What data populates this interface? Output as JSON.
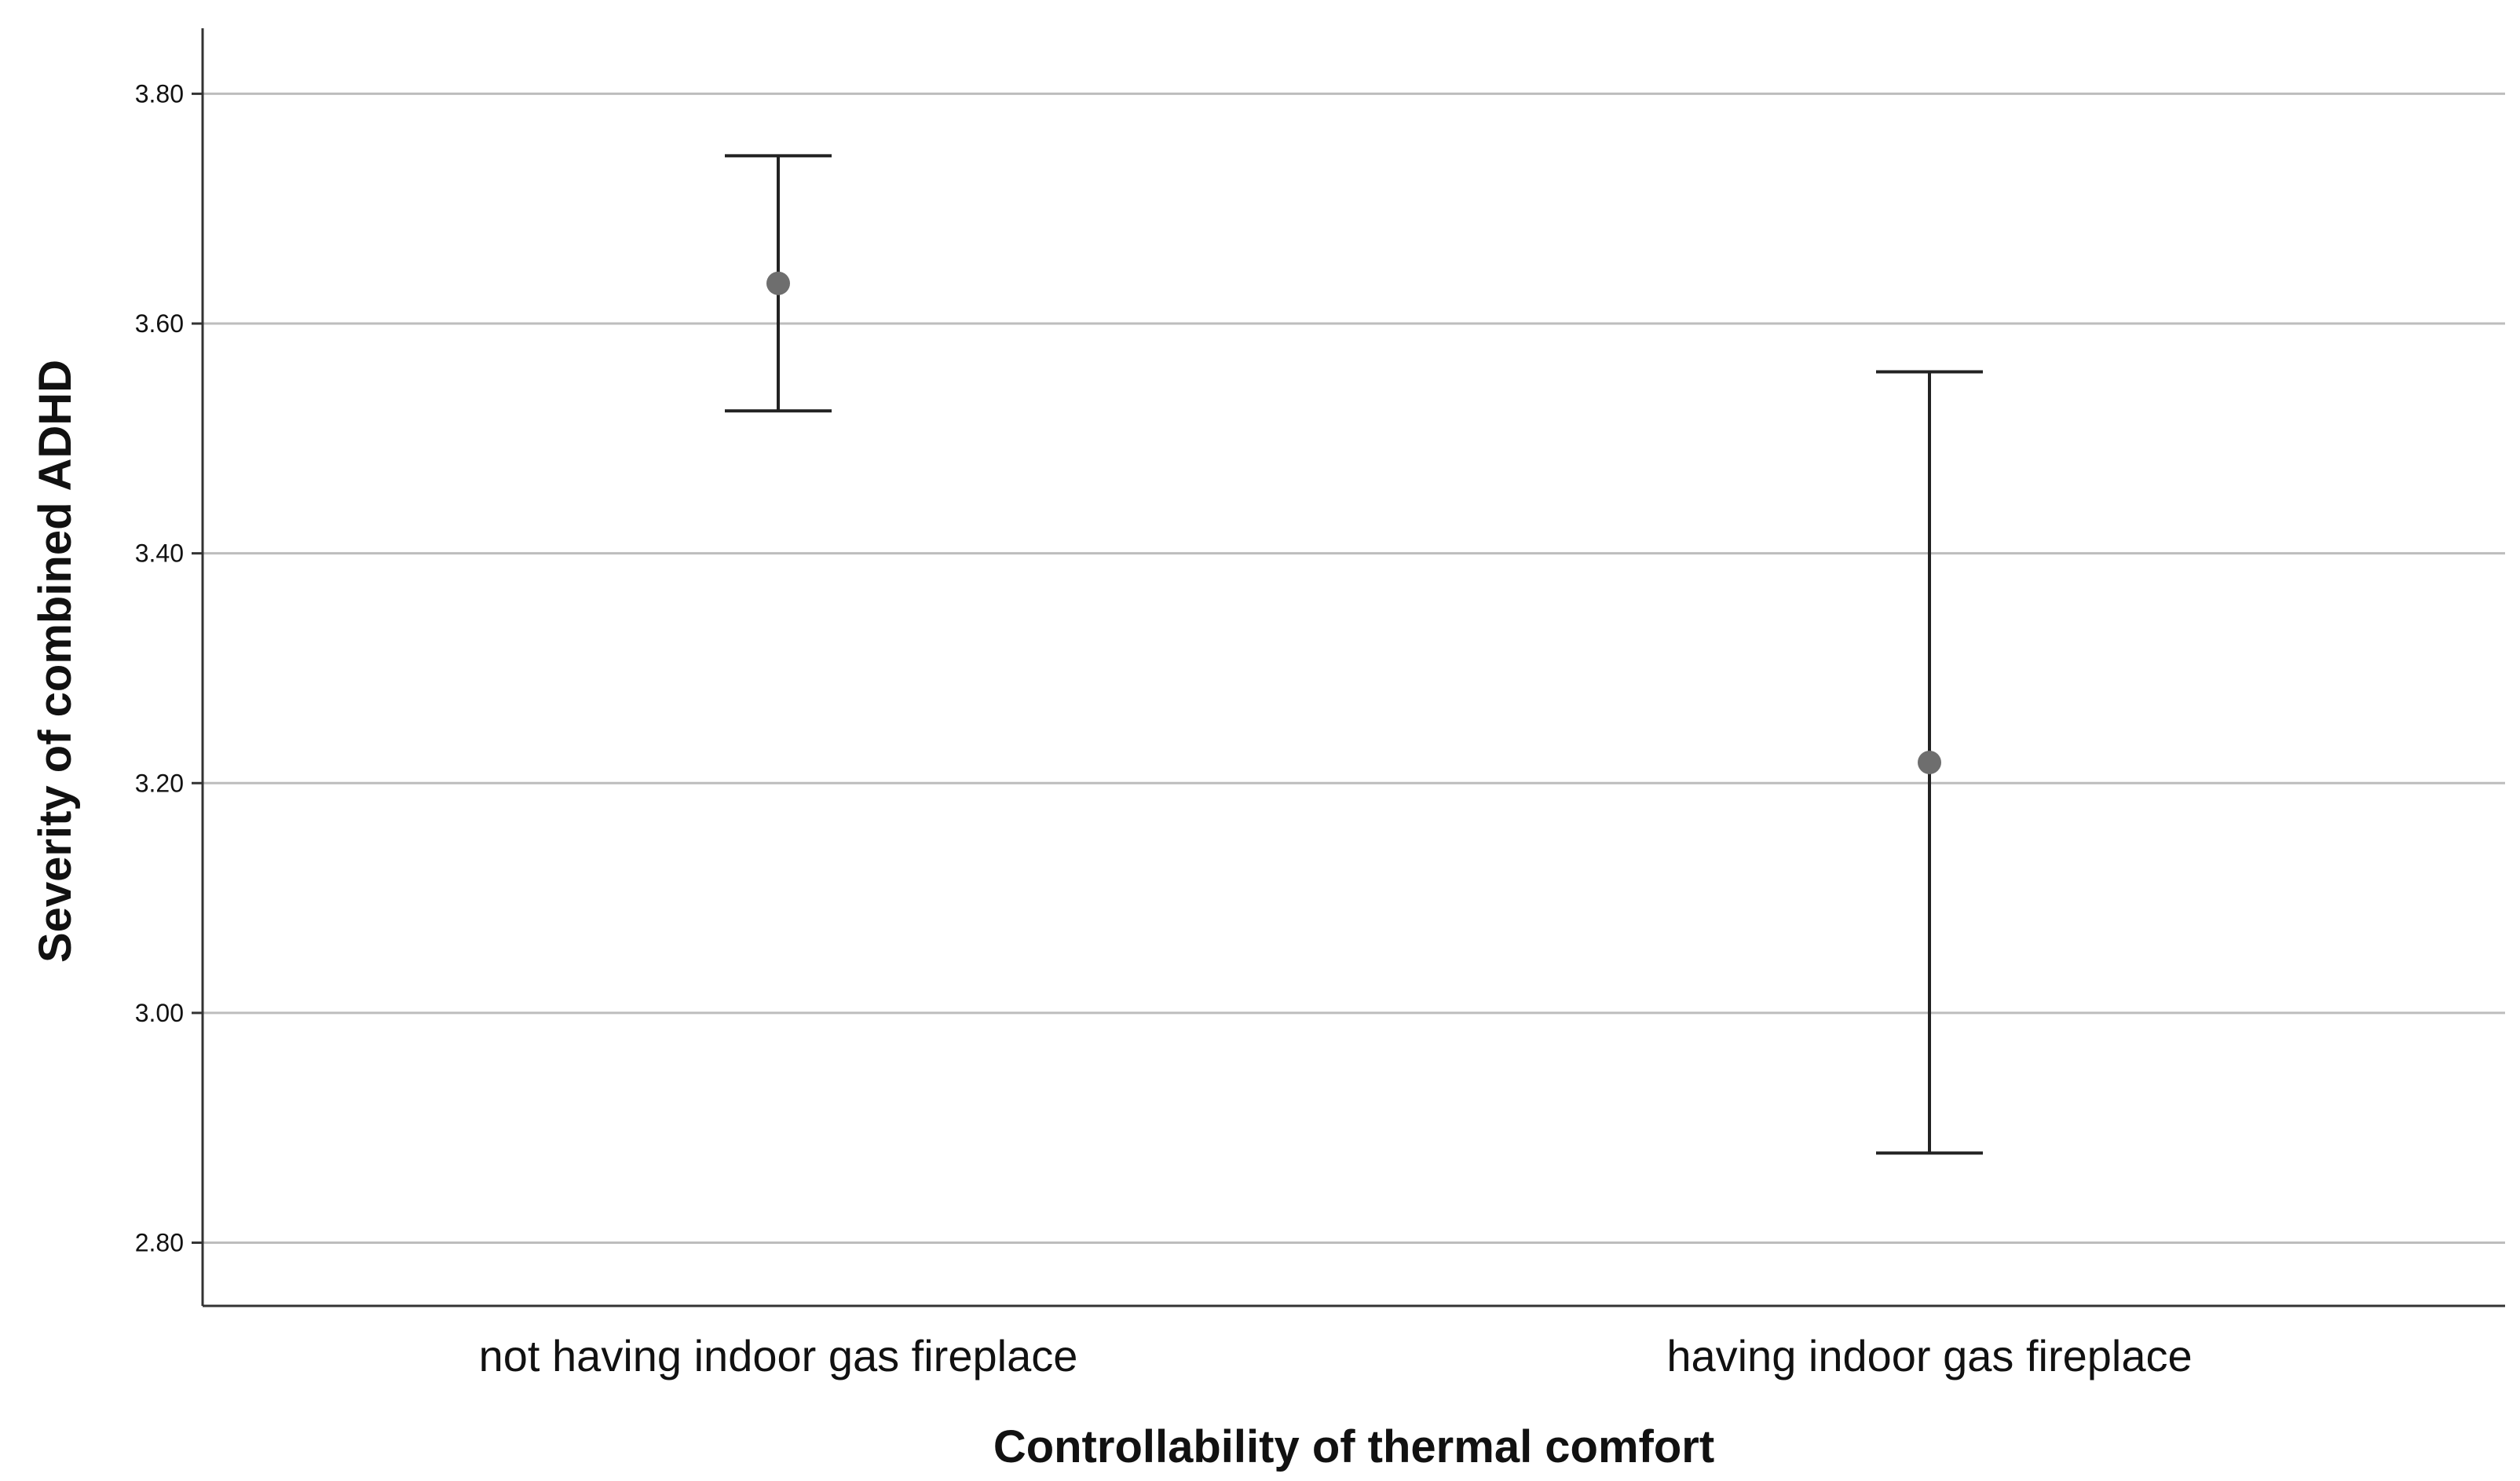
{
  "chart_data": {
    "type": "errorbar",
    "xlabel": "Controllability of thermal comfort",
    "ylabel": "Severity of combined ADHD",
    "categories": [
      "not having indoor gas fireplace",
      "having indoor gas fireplace"
    ],
    "points": [
      {
        "category": "not having indoor gas fireplace",
        "mean": 3.635,
        "lower": 3.524,
        "upper": 3.746
      },
      {
        "category": "having indoor gas fireplace",
        "mean": 3.218,
        "lower": 2.878,
        "upper": 3.558
      }
    ],
    "ylim": [
      2.745,
      3.857
    ],
    "yticks": [
      2.8,
      3.0,
      3.2,
      3.4,
      3.6,
      3.8
    ],
    "ytick_labels": [
      "2.80",
      "3.00",
      "3.20",
      "3.40",
      "3.60",
      "3.80"
    ],
    "grid": true,
    "colors": {
      "gridline": "#bdbdbd",
      "axis": "#333333",
      "errorbar": "#222222",
      "marker": "#6e6e6e"
    }
  }
}
